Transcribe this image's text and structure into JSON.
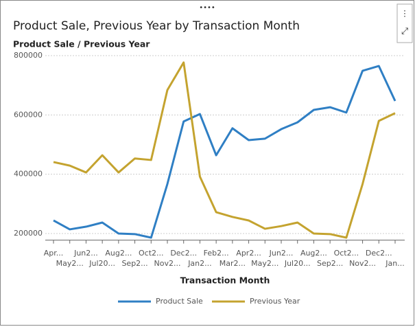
{
  "chart_data": {
    "type": "line",
    "title": "Product Sale, Previous Year by Transaction Month",
    "y_label": "Product Sale / Previous Year",
    "x_label": "Transaction Month",
    "categories": [
      "Apr...",
      "May2...",
      "Jun2...",
      "Jul20...",
      "Aug2...",
      "Sep2...",
      "Oct2...",
      "Nov2...",
      "Dec2...",
      "Jan2...",
      "Feb2...",
      "Mar2...",
      "Apr2...",
      "May2...",
      "Jun2...",
      "Jul20...",
      "Aug2...",
      "Sep2...",
      "Oct2...",
      "Nov2...",
      "Dec2...",
      "Jan..."
    ],
    "series": [
      {
        "name": "Product Sale",
        "color": "#2f7fc4",
        "values": [
          244000,
          214000,
          223000,
          237000,
          200000,
          198000,
          186000,
          367000,
          578000,
          603000,
          464000,
          555000,
          515000,
          520000,
          552000,
          575000,
          617000,
          626000,
          608000,
          749000,
          765000,
          647000
        ]
      },
      {
        "name": "Previous Year",
        "color": "#c4a32f",
        "values": [
          441000,
          429000,
          406000,
          464000,
          406000,
          453000,
          448000,
          684000,
          777000,
          392000,
          272000,
          256000,
          244000,
          216000,
          225000,
          237000,
          200000,
          198000,
          186000,
          367000,
          580000,
          606000
        ]
      }
    ],
    "ylim": [
      180000,
      810000
    ],
    "yticks": [
      200000,
      400000,
      600000,
      800000
    ],
    "grid": true,
    "legend": "bottom"
  }
}
